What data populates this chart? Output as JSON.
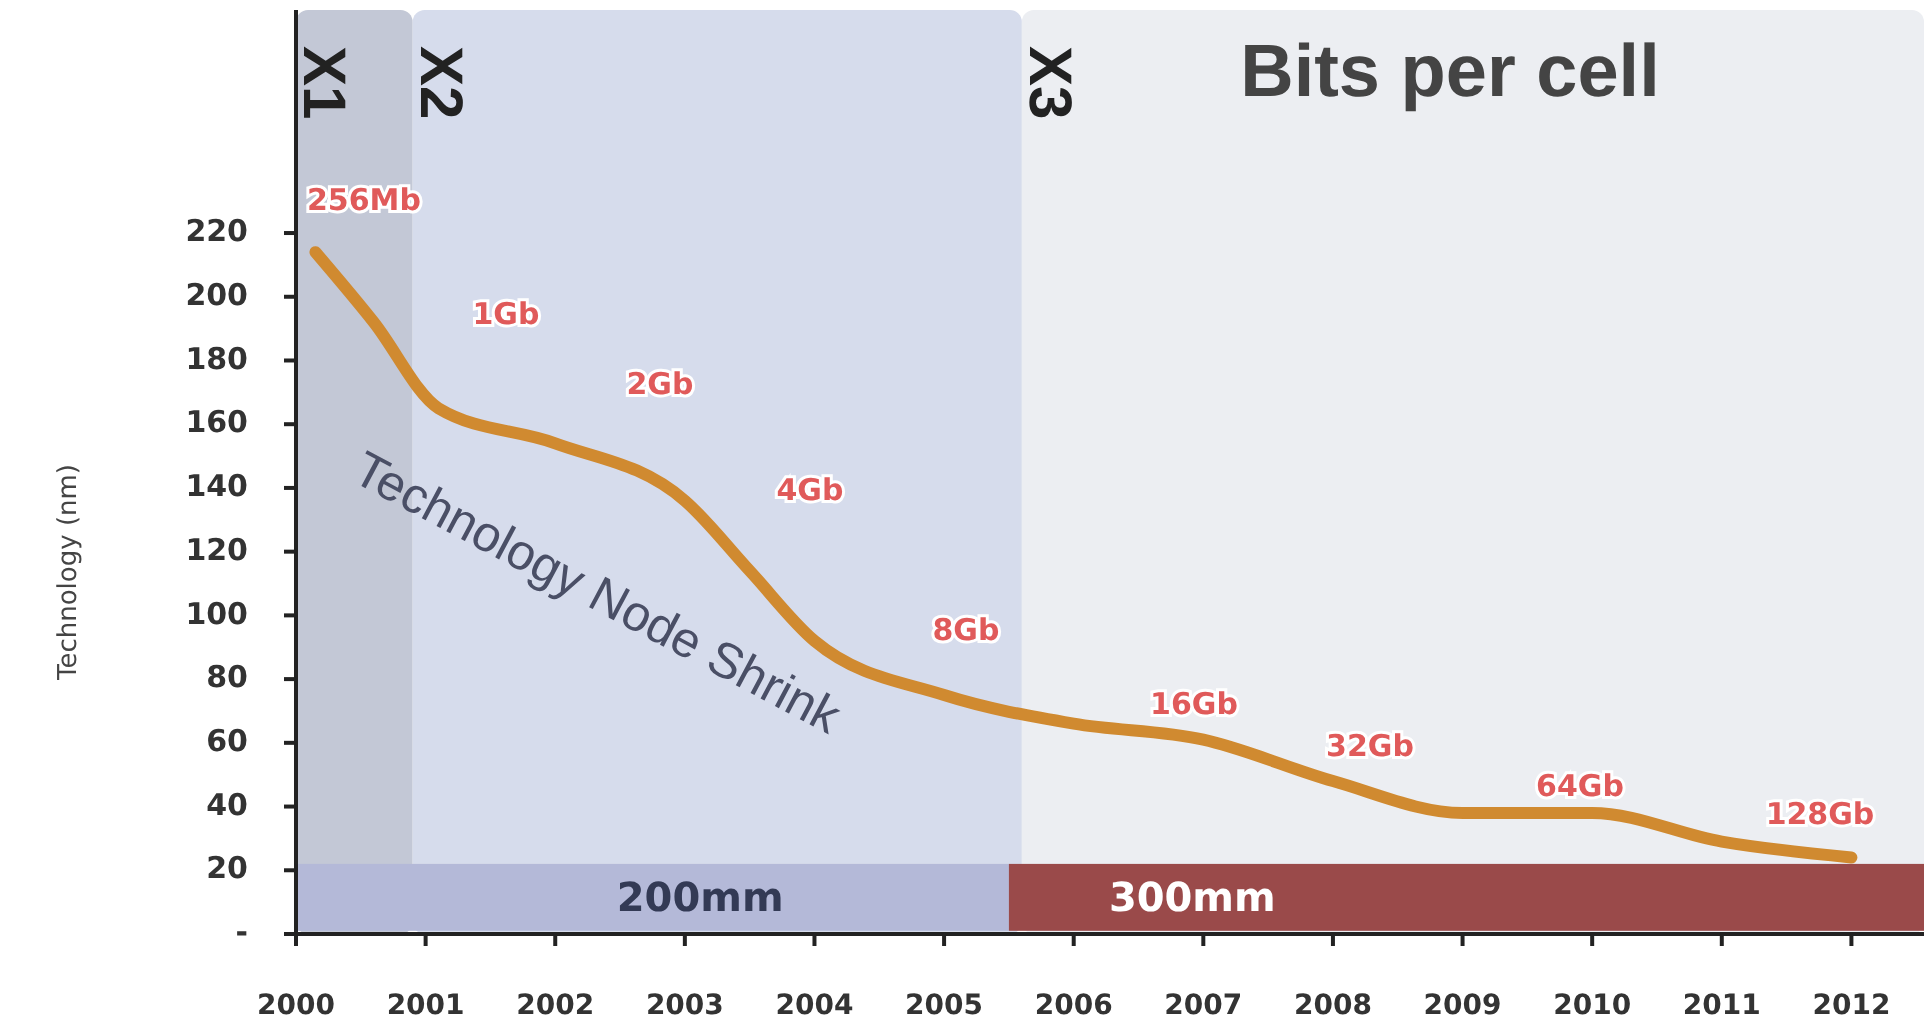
{
  "chart_data": {
    "type": "line",
    "title": "Bits per cell",
    "ylabel": "Technology (nm)",
    "x": [
      2000.15,
      2000.6,
      2001.1,
      2002,
      2003,
      2003.5,
      2004,
      2005,
      2006,
      2007,
      2008,
      2009,
      2010,
      2011,
      2012
    ],
    "series": [
      {
        "color": "#d08a30",
        "values": [
          214,
          192,
          165,
          154,
          136,
          114,
          92,
          75,
          66,
          61,
          48,
          38,
          38,
          29,
          24
        ]
      }
    ],
    "xlim": [
      2000,
      2012.56
    ],
    "xticks": [
      2000,
      2001,
      2002,
      2003,
      2004,
      2005,
      2006,
      2007,
      2008,
      2009,
      2010,
      2011,
      2012
    ],
    "ylim": [
      0,
      290
    ],
    "yticks": [
      {
        "value": 0,
        "label": "-"
      },
      20,
      40,
      60,
      80,
      100,
      120,
      140,
      160,
      180,
      200,
      220
    ],
    "grid": false,
    "marker": "none",
    "line_style": "solid",
    "bands": [
      {
        "axis": "x",
        "from": 2000,
        "to": 2000.9,
        "label": "X1",
        "color": "#c3c8d6"
      },
      {
        "axis": "x",
        "from": 2000.9,
        "to": 2005.6,
        "label": "X2",
        "color": "#d6dcec"
      },
      {
        "axis": "x",
        "from": 2005.6,
        "to": 2012.56,
        "label": "X3",
        "color": "#eceef2"
      },
      {
        "axis": "x",
        "from": 2000,
        "to": 2005.5,
        "label": "200mm",
        "color": "#b4b9d8"
      },
      {
        "axis": "x",
        "from": 2005.5,
        "to": 2012.56,
        "label": "300mm",
        "color": "#9a4a4a"
      }
    ],
    "annotations": [
      "256Mb",
      "1Gb",
      "2Gb",
      "4Gb",
      "8Gb",
      "16Gb",
      "32Gb",
      "64Gb",
      "128Gb",
      "Technology Node Shrink"
    ]
  }
}
